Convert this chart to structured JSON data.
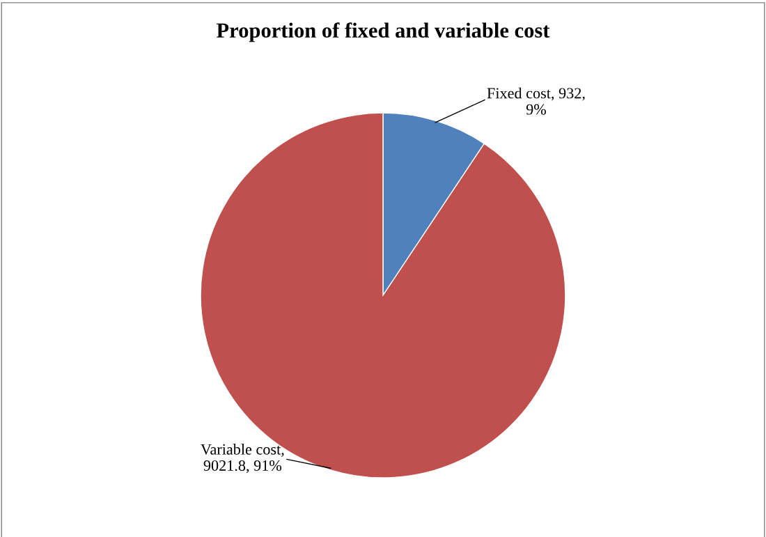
{
  "chart_data": {
    "type": "pie",
    "title": "Proportion of fixed and variable cost",
    "categories": [
      "Fixed cost",
      "Variable cost"
    ],
    "values": [
      932,
      9021.8
    ],
    "colors": [
      "#4f81bd",
      "#c0504d"
    ],
    "value_labels": [
      ", 932,\n9%",
      ",\n9021.8, 91%"
    ],
    "legend": false
  }
}
